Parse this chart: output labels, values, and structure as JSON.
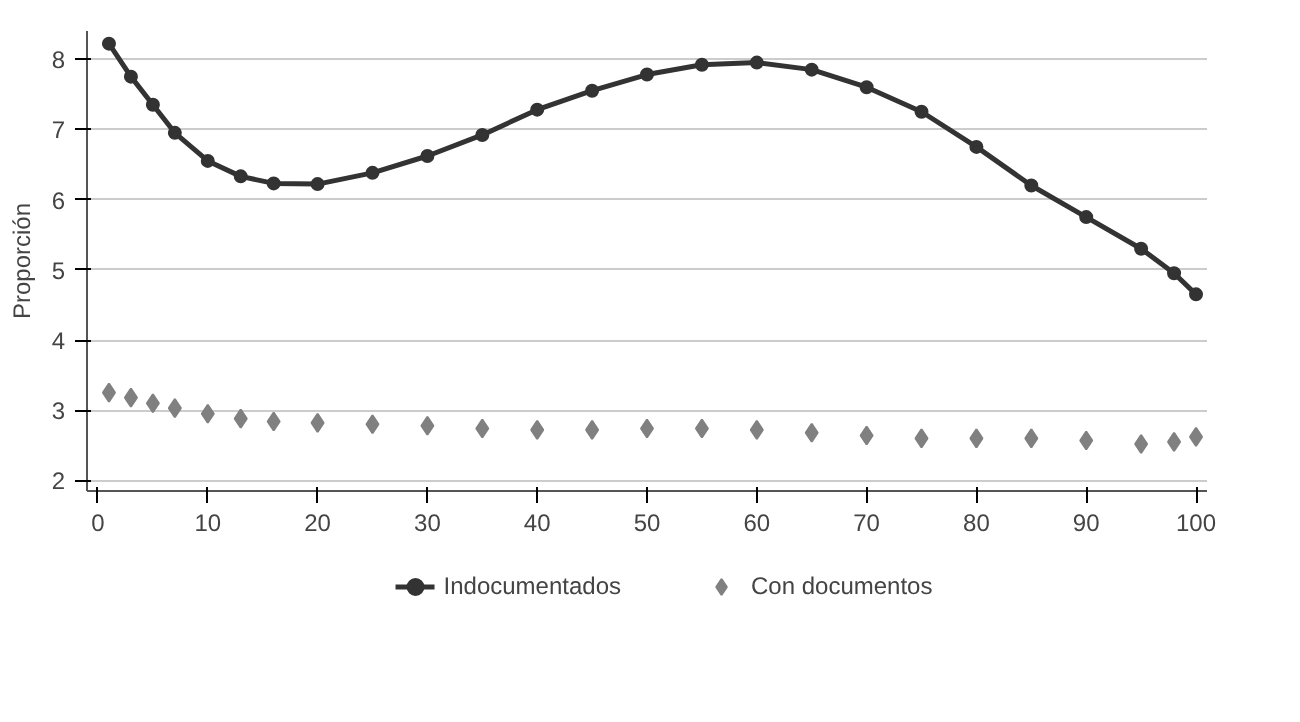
{
  "chart_data": {
    "type": "line",
    "ylabel": "Proporción",
    "xlim": [
      -1,
      101
    ],
    "xticks": [
      0,
      10,
      20,
      30,
      40,
      50,
      60,
      70,
      80,
      90,
      100
    ],
    "ylim": [
      1.85,
      8.4
    ],
    "yticks": [
      2,
      3,
      4,
      5,
      6,
      7,
      8
    ],
    "grid": "y",
    "legend": "bottom",
    "series": [
      {
        "name": "Indocumentados",
        "marker": "circle",
        "color": "#333333",
        "x": [
          1,
          3,
          5,
          7,
          10,
          13,
          16,
          20,
          25,
          30,
          35,
          40,
          45,
          50,
          55,
          60,
          65,
          70,
          75,
          80,
          85,
          90,
          95,
          98,
          100
        ],
        "values": [
          8.22,
          7.75,
          7.35,
          6.95,
          6.55,
          6.33,
          6.23,
          6.22,
          6.38,
          6.62,
          6.92,
          7.28,
          7.55,
          7.78,
          7.92,
          7.95,
          7.85,
          7.6,
          7.25,
          6.75,
          6.2,
          5.75,
          5.3,
          4.95,
          4.65
        ]
      },
      {
        "name": "Con documentos",
        "type": "scatter",
        "marker": "diamond",
        "color": "#808080",
        "x": [
          1,
          3,
          5,
          7,
          10,
          13,
          16,
          20,
          25,
          30,
          35,
          40,
          45,
          50,
          55,
          60,
          65,
          70,
          75,
          80,
          85,
          90,
          95,
          98,
          100
        ],
        "values": [
          3.25,
          3.18,
          3.1,
          3.03,
          2.95,
          2.88,
          2.84,
          2.82,
          2.8,
          2.78,
          2.74,
          2.72,
          2.72,
          2.74,
          2.74,
          2.72,
          2.68,
          2.64,
          2.6,
          2.6,
          2.6,
          2.57,
          2.52,
          2.55,
          2.62
        ]
      }
    ]
  }
}
